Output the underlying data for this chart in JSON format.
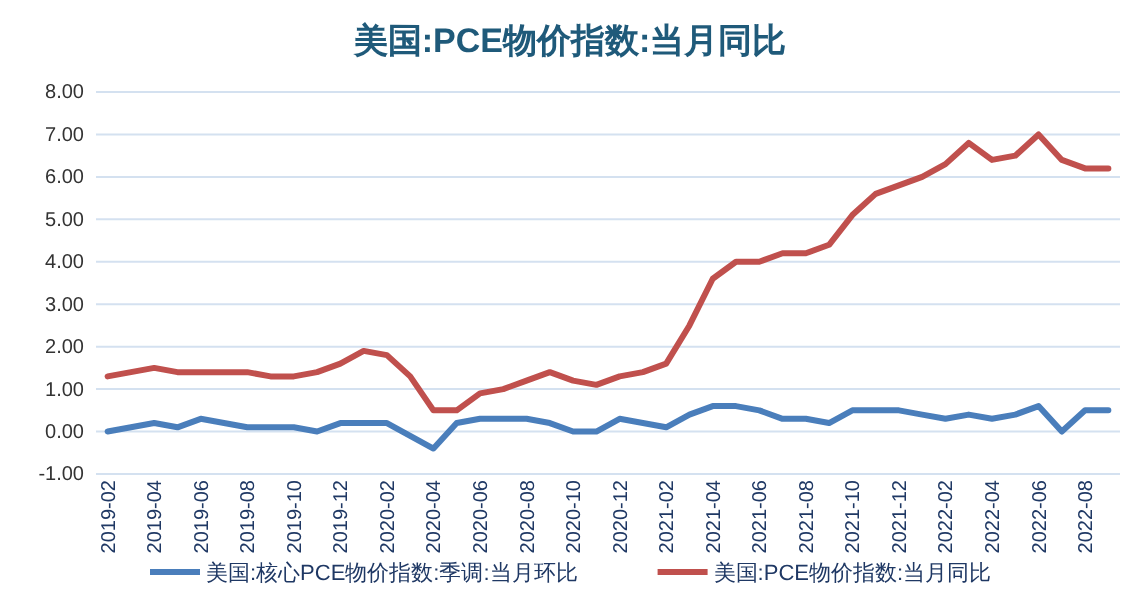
{
  "chart_data": {
    "type": "line",
    "title": "美国:PCE物价指数:当月同比",
    "categories": [
      "2019-02",
      null,
      "2019-04",
      null,
      "2019-06",
      null,
      "2019-08",
      null,
      "2019-10",
      null,
      "2019-12",
      null,
      "2020-02",
      null,
      "2020-04",
      null,
      "2020-06",
      null,
      "2020-08",
      null,
      "2020-10",
      null,
      "2020-12",
      null,
      "2021-02",
      null,
      "2021-04",
      null,
      "2021-06",
      null,
      "2021-08",
      null,
      "2021-10",
      null,
      "2021-12",
      null,
      "2022-02",
      null,
      "2022-04",
      null,
      "2022-06",
      null,
      "2022-08",
      null
    ],
    "series": [
      {
        "name": "美国:核心PCE物价指数:季调:当月环比",
        "color": "#4a7ebb",
        "values": [
          0.0,
          0.1,
          0.2,
          0.1,
          0.3,
          0.2,
          0.1,
          0.1,
          0.1,
          0.0,
          0.2,
          0.2,
          0.2,
          -0.1,
          -0.4,
          0.2,
          0.3,
          0.3,
          0.3,
          0.2,
          0.0,
          0.0,
          0.3,
          0.2,
          0.1,
          0.4,
          0.6,
          0.6,
          0.5,
          0.3,
          0.3,
          0.2,
          0.5,
          0.5,
          0.5,
          0.4,
          0.3,
          0.4,
          0.3,
          0.4,
          0.6,
          0.0,
          0.5,
          0.5
        ]
      },
      {
        "name": "美国:PCE物价指数:当月同比",
        "color": "#c0504d",
        "values": [
          1.3,
          1.4,
          1.5,
          1.4,
          1.4,
          1.4,
          1.4,
          1.3,
          1.3,
          1.4,
          1.6,
          1.9,
          1.8,
          1.3,
          0.5,
          0.5,
          0.9,
          1.0,
          1.2,
          1.4,
          1.2,
          1.1,
          1.3,
          1.4,
          1.6,
          2.5,
          3.6,
          4.0,
          4.0,
          4.2,
          4.2,
          4.4,
          5.1,
          5.6,
          5.8,
          6.0,
          6.3,
          6.8,
          6.4,
          6.5,
          7.0,
          6.4,
          6.2,
          6.2
        ]
      }
    ],
    "ylim": [
      -1,
      8
    ],
    "yticks": [
      {
        "value": -1,
        "label": "-1.00"
      },
      {
        "value": 0,
        "label": "0.00"
      },
      {
        "value": 1,
        "label": "1.00"
      },
      {
        "value": 2,
        "label": "2.00"
      },
      {
        "value": 3,
        "label": "3.00"
      },
      {
        "value": 4,
        "label": "4.00"
      },
      {
        "value": 5,
        "label": "5.00"
      },
      {
        "value": 6,
        "label": "6.00"
      },
      {
        "value": 7,
        "label": "7.00"
      },
      {
        "value": 8,
        "label": "8.00"
      }
    ],
    "grid": "y",
    "legend": "bottom",
    "line_style": "solid",
    "marker": "none"
  }
}
